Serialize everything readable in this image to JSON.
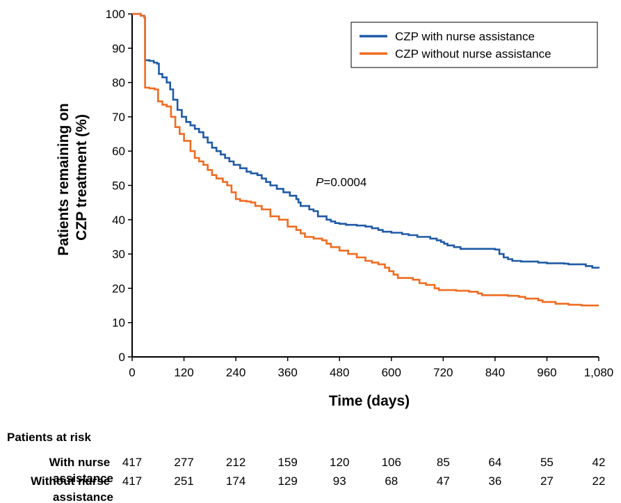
{
  "chart_data": {
    "type": "line",
    "step": true,
    "ylabel_lines": [
      "Patients remaining on",
      "CZP treatment (%)"
    ],
    "xlabel": "Time (days)",
    "xlim": [
      0,
      1080
    ],
    "ylim": [
      0,
      100
    ],
    "x_ticks": [
      0,
      120,
      240,
      360,
      480,
      600,
      720,
      840,
      960,
      1080
    ],
    "x_tick_labels": [
      "0",
      "120",
      "240",
      "360",
      "480",
      "600",
      "720",
      "840",
      "960",
      "1,080"
    ],
    "y_ticks": [
      0,
      10,
      20,
      30,
      40,
      50,
      60,
      70,
      80,
      90,
      100
    ],
    "y_tick_labels": [
      "0",
      "10",
      "20",
      "30",
      "40",
      "50",
      "60",
      "70",
      "80",
      "90",
      "100"
    ],
    "legend_position": "top-right",
    "annotation": {
      "italic": "P",
      "text": "=0.0004",
      "x": 425,
      "y": 51
    },
    "series": [
      {
        "name": "CZP with nurse assistance",
        "color": "#1f5aa6",
        "points": [
          [
            0,
            100
          ],
          [
            12,
            100
          ],
          [
            20,
            99.5
          ],
          [
            28,
            99
          ],
          [
            30,
            86.5
          ],
          [
            40,
            86.3
          ],
          [
            50,
            85.8
          ],
          [
            58,
            85.5
          ],
          [
            62,
            82.5
          ],
          [
            70,
            81.5
          ],
          [
            80,
            80
          ],
          [
            88,
            78
          ],
          [
            95,
            75
          ],
          [
            105,
            72
          ],
          [
            115,
            70
          ],
          [
            125,
            68.5
          ],
          [
            135,
            67.5
          ],
          [
            145,
            66.5
          ],
          [
            155,
            65.5
          ],
          [
            165,
            64
          ],
          [
            175,
            62.5
          ],
          [
            185,
            61
          ],
          [
            195,
            60
          ],
          [
            205,
            59
          ],
          [
            215,
            58
          ],
          [
            225,
            57
          ],
          [
            235,
            56
          ],
          [
            250,
            55
          ],
          [
            265,
            54
          ],
          [
            275,
            53.5
          ],
          [
            290,
            53
          ],
          [
            300,
            52
          ],
          [
            310,
            51
          ],
          [
            320,
            50
          ],
          [
            335,
            49
          ],
          [
            350,
            48
          ],
          [
            365,
            47
          ],
          [
            380,
            46
          ],
          [
            385,
            45
          ],
          [
            390,
            44
          ],
          [
            410,
            43
          ],
          [
            420,
            42.5
          ],
          [
            430,
            41
          ],
          [
            450,
            40
          ],
          [
            460,
            39.5
          ],
          [
            470,
            39
          ],
          [
            480,
            38.8
          ],
          [
            495,
            38.5
          ],
          [
            520,
            38.3
          ],
          [
            540,
            38
          ],
          [
            555,
            37.5
          ],
          [
            570,
            37
          ],
          [
            580,
            36.5
          ],
          [
            600,
            36.2
          ],
          [
            625,
            35.8
          ],
          [
            640,
            35.5
          ],
          [
            660,
            35
          ],
          [
            690,
            34.5
          ],
          [
            705,
            34
          ],
          [
            715,
            33.5
          ],
          [
            722,
            33
          ],
          [
            730,
            32.5
          ],
          [
            745,
            32
          ],
          [
            760,
            31.5
          ],
          [
            840,
            31.3
          ],
          [
            850,
            30
          ],
          [
            860,
            29
          ],
          [
            870,
            28.5
          ],
          [
            880,
            28
          ],
          [
            900,
            27.8
          ],
          [
            940,
            27.5
          ],
          [
            960,
            27.3
          ],
          [
            1000,
            27.2
          ],
          [
            1010,
            27
          ],
          [
            1050,
            26.5
          ],
          [
            1065,
            26
          ],
          [
            1080,
            25.8
          ]
        ]
      },
      {
        "name": "CZP without nurse assistance",
        "color": "#ef6c21",
        "points": [
          [
            0,
            100
          ],
          [
            12,
            100
          ],
          [
            20,
            99.5
          ],
          [
            28,
            99
          ],
          [
            30,
            78.5
          ],
          [
            40,
            78.3
          ],
          [
            52,
            78
          ],
          [
            60,
            74.5
          ],
          [
            70,
            73.5
          ],
          [
            80,
            73
          ],
          [
            90,
            70
          ],
          [
            100,
            67
          ],
          [
            110,
            65
          ],
          [
            120,
            63
          ],
          [
            135,
            60
          ],
          [
            145,
            58
          ],
          [
            155,
            57
          ],
          [
            165,
            56
          ],
          [
            175,
            54.5
          ],
          [
            185,
            53
          ],
          [
            195,
            52
          ],
          [
            210,
            51
          ],
          [
            220,
            50
          ],
          [
            230,
            48
          ],
          [
            240,
            46
          ],
          [
            250,
            45.5
          ],
          [
            265,
            45.3
          ],
          [
            275,
            45
          ],
          [
            285,
            44
          ],
          [
            300,
            43
          ],
          [
            320,
            41
          ],
          [
            340,
            40
          ],
          [
            360,
            38
          ],
          [
            380,
            37
          ],
          [
            390,
            36
          ],
          [
            400,
            35
          ],
          [
            420,
            34.5
          ],
          [
            440,
            34
          ],
          [
            450,
            33
          ],
          [
            460,
            32
          ],
          [
            480,
            31
          ],
          [
            500,
            30
          ],
          [
            520,
            29
          ],
          [
            540,
            28
          ],
          [
            555,
            27.5
          ],
          [
            570,
            27
          ],
          [
            585,
            26
          ],
          [
            595,
            25
          ],
          [
            605,
            24
          ],
          [
            615,
            23
          ],
          [
            650,
            22.5
          ],
          [
            665,
            21.5
          ],
          [
            680,
            21
          ],
          [
            700,
            20
          ],
          [
            710,
            19.5
          ],
          [
            750,
            19.3
          ],
          [
            780,
            19
          ],
          [
            800,
            18.5
          ],
          [
            810,
            18
          ],
          [
            870,
            17.8
          ],
          [
            895,
            17.5
          ],
          [
            910,
            17
          ],
          [
            940,
            16.5
          ],
          [
            950,
            16
          ],
          [
            980,
            15.5
          ],
          [
            1010,
            15.2
          ],
          [
            1040,
            15
          ],
          [
            1080,
            15
          ]
        ]
      }
    ],
    "risk_table": {
      "title": "Patients at risk",
      "rows": [
        {
          "label_lines": [
            "With nurse",
            "assistance"
          ],
          "values": [
            "417",
            "277",
            "212",
            "159",
            "120",
            "106",
            "85",
            "64",
            "55",
            "42"
          ]
        },
        {
          "label_lines": [
            "Without nurse",
            "assistance"
          ],
          "values": [
            "417",
            "251",
            "174",
            "129",
            "93",
            "68",
            "47",
            "36",
            "27",
            "22"
          ]
        }
      ]
    }
  }
}
